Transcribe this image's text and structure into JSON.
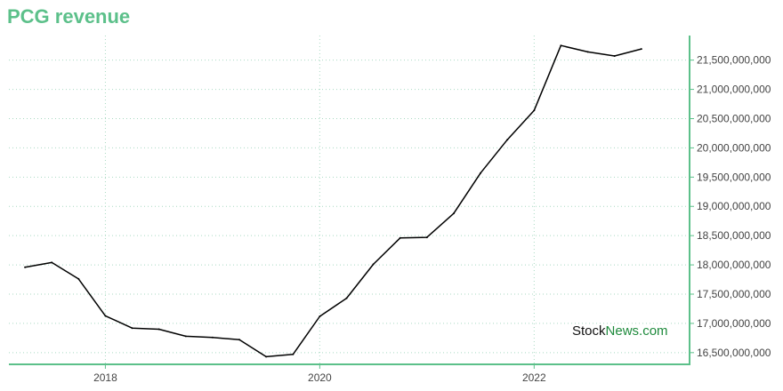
{
  "page": {
    "title": "PCG revenue"
  },
  "watermark": {
    "part1": "Stock",
    "part2": "News.com"
  },
  "colors": {
    "accent": "#5cc08a",
    "line": "#000000",
    "grid": "#a9d9c2"
  },
  "chart_data": {
    "type": "line",
    "title": "PCG revenue",
    "xlabel": "",
    "ylabel": "",
    "grid": true,
    "legend": "none",
    "x_ticks": [
      2018,
      2020,
      2022
    ],
    "y_ticks": [
      16500000000,
      17000000000,
      17500000000,
      18000000000,
      18500000000,
      19000000000,
      19500000000,
      20000000000,
      20500000000,
      21000000000,
      21500000000
    ],
    "y_tick_labels": [
      "16,500,000,000",
      "17,000,000,000",
      "17,500,000,000",
      "18,000,000,000",
      "18,500,000,000",
      "19,000,000,000",
      "19,500,000,000",
      "20,000,000,000",
      "20,500,000,000",
      "21,000,000,000",
      "21,500,000,000"
    ],
    "xlim": [
      2017.1,
      2023.45
    ],
    "ylim": [
      16300000000,
      21920000000
    ],
    "series": [
      {
        "x": [
          2017.25,
          2017.5,
          2017.75,
          2018.0,
          2018.25,
          2018.5,
          2018.75,
          2019.0,
          2019.25,
          2019.5,
          2019.75,
          2020.0,
          2020.25,
          2020.5,
          2020.75,
          2021.0,
          2021.25,
          2021.5,
          2021.75,
          2022.0,
          2022.25,
          2022.5,
          2022.75,
          2023.0
        ],
        "y": [
          17960000000,
          18040000000,
          17760000000,
          17130000000,
          16920000000,
          16900000000,
          16780000000,
          16760000000,
          16720000000,
          16430000000,
          16470000000,
          17120000000,
          17430000000,
          18010000000,
          18460000000,
          18470000000,
          18880000000,
          19570000000,
          20140000000,
          20640000000,
          21750000000,
          21640000000,
          21570000000,
          21690000000
        ]
      }
    ]
  }
}
